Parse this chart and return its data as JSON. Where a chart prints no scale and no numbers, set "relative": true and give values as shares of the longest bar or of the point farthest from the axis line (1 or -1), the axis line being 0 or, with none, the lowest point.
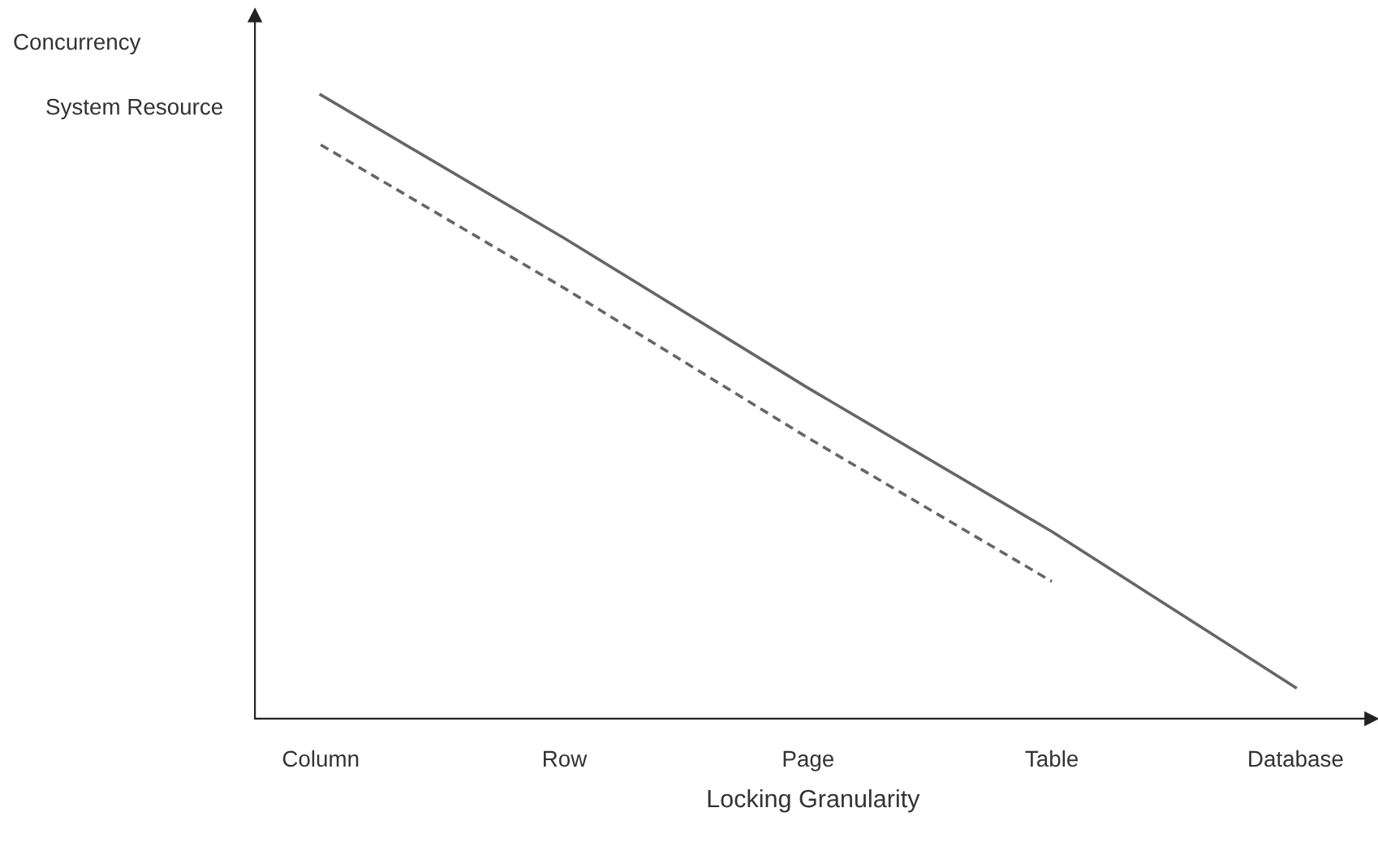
{
  "chart_data": {
    "type": "line",
    "relative": true,
    "xlabel": "Locking Granularity",
    "annotations": [
      "Concurrency",
      "System Resource"
    ],
    "categories": [
      "Column",
      "Row",
      "Page",
      "Table",
      "Database"
    ],
    "series": [
      {
        "color": "#666666",
        "line_style": "solid",
        "values": [
          1.0,
          0.77,
          0.53,
          0.3,
          0.05
        ]
      },
      {
        "color": "#666666",
        "line_style": "dashed",
        "values": [
          0.92,
          0.69,
          0.45,
          0.22,
          null
        ]
      }
    ],
    "grid": false,
    "legend": false,
    "marker": "none"
  }
}
